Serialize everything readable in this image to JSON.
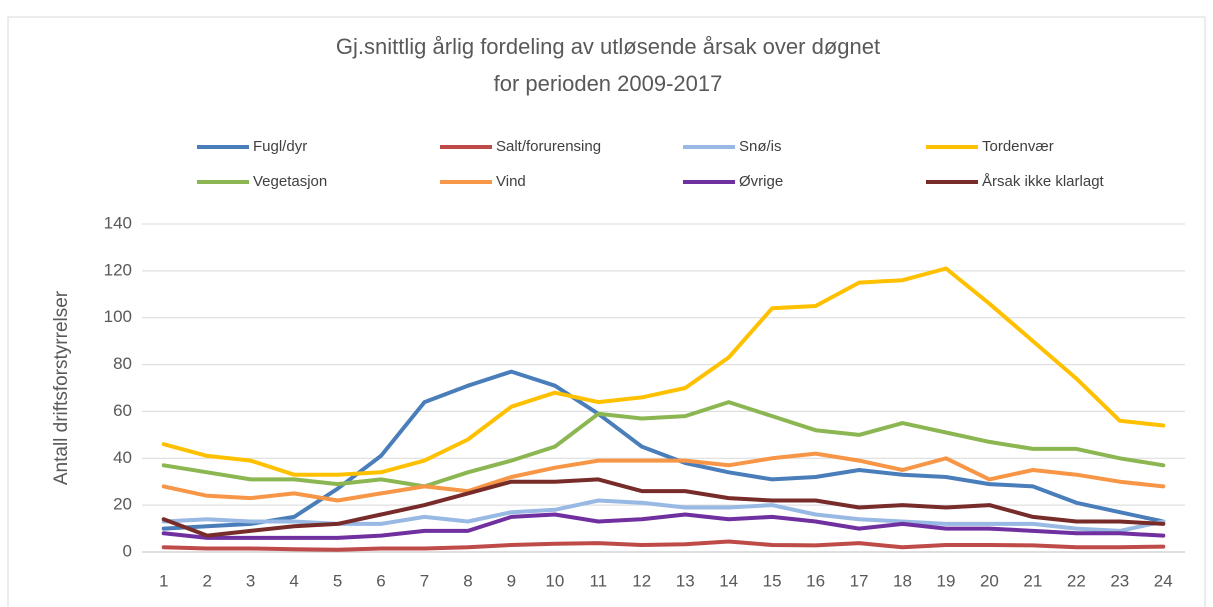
{
  "chart_data": {
    "type": "line",
    "title": [
      "Gj.snittlig årlig fordeling av utløsende årsak over døgnet",
      "for perioden 2009-2017"
    ],
    "y_label": "Antall driftsforstyrrelser",
    "categories": [
      "1",
      "2",
      "3",
      "4",
      "5",
      "6",
      "7",
      "8",
      "9",
      "10",
      "11",
      "12",
      "13",
      "14",
      "15",
      "16",
      "17",
      "18",
      "19",
      "20",
      "21",
      "22",
      "23",
      "24"
    ],
    "ylim": [
      0,
      140
    ],
    "yticks": [
      0,
      20,
      40,
      60,
      80,
      100,
      120,
      140
    ],
    "grid": true,
    "legend": "top",
    "series": [
      {
        "name": "Fugl/dyr",
        "color": "#4a7ebb",
        "values": [
          10,
          11,
          12,
          15,
          27,
          41,
          64,
          71,
          77,
          71,
          59,
          45,
          38,
          34,
          31,
          32,
          35,
          33,
          32,
          29,
          28,
          21,
          17,
          13
        ]
      },
      {
        "name": "Salt/forurensing",
        "color": "#be4b48",
        "values": [
          2,
          1.5,
          1.5,
          1.2,
          1,
          1.5,
          1.5,
          2,
          3,
          3.5,
          3.8,
          3,
          3.3,
          4.5,
          3,
          2.8,
          3.8,
          2,
          3,
          3,
          2.8,
          2,
          2,
          2.3
        ]
      },
      {
        "name": "Snø/is",
        "color": "#98b9e3",
        "values": [
          13,
          14,
          13,
          13,
          12,
          12,
          15,
          13,
          17,
          18,
          22,
          21,
          19,
          19,
          20,
          16,
          14,
          13,
          12,
          12,
          12,
          10,
          9,
          13
        ]
      },
      {
        "name": "Tordenvær",
        "color": "#ffc000",
        "values": [
          46,
          41,
          39,
          33,
          33,
          34,
          39,
          48,
          62,
          68,
          64,
          66,
          70,
          83,
          104,
          105,
          115,
          116,
          121,
          106,
          90,
          74,
          56,
          54
        ]
      },
      {
        "name": "Vegetasjon",
        "color": "#8cb652",
        "values": [
          37,
          34,
          31,
          31,
          29,
          31,
          28,
          34,
          39,
          45,
          59,
          57,
          58,
          64,
          58,
          52,
          50,
          55,
          51,
          47,
          44,
          44,
          40,
          37
        ]
      },
      {
        "name": "Vind",
        "color": "#f79646",
        "values": [
          28,
          24,
          23,
          25,
          22,
          25,
          28,
          26,
          32,
          36,
          39,
          39,
          39,
          37,
          40,
          42,
          39,
          35,
          40,
          31,
          35,
          33,
          30,
          28
        ]
      },
      {
        "name": "Øvrige",
        "color": "#7030a0",
        "values": [
          8,
          6,
          6,
          6,
          6,
          7,
          9,
          9,
          15,
          16,
          13,
          14,
          16,
          14,
          15,
          13,
          10,
          12,
          10,
          10,
          9,
          8,
          8,
          7
        ]
      },
      {
        "name": "Årsak ikke klarlagt",
        "color": "#772c2a",
        "values": [
          14,
          7,
          9,
          11,
          12,
          16,
          20,
          25,
          30,
          30,
          31,
          26,
          26,
          23,
          22,
          22,
          19,
          20,
          19,
          20,
          15,
          13,
          13,
          12
        ]
      }
    ]
  }
}
